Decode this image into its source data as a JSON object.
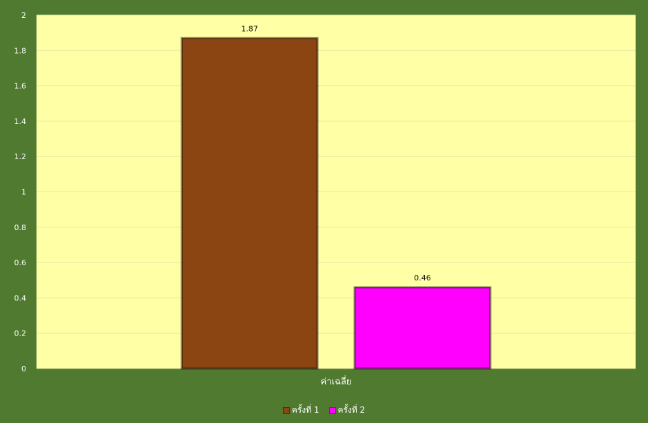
{
  "chart_data": {
    "type": "bar",
    "title": "",
    "xlabel": "",
    "ylabel": "",
    "categories": [
      "ค่าเฉลี่ย"
    ],
    "series": [
      {
        "name": "ครั้งที่ 1",
        "values": [
          1.87
        ],
        "color": "#8b4513"
      },
      {
        "name": "ครั้งที่ 2",
        "values": [
          0.46
        ],
        "color": "#ff00ff"
      }
    ],
    "ylim": [
      0,
      2
    ],
    "yticks": [
      "0",
      "0.2",
      "0.4",
      "0.6",
      "0.8",
      "1",
      "1.2",
      "1.4",
      "1.6",
      "1.8",
      "2"
    ],
    "data_labels": [
      "1.87",
      "0.46"
    ],
    "grid": true,
    "legend_position": "bottom",
    "plot_background": "#ffffa6",
    "chart_background": "#4f7a2f"
  }
}
